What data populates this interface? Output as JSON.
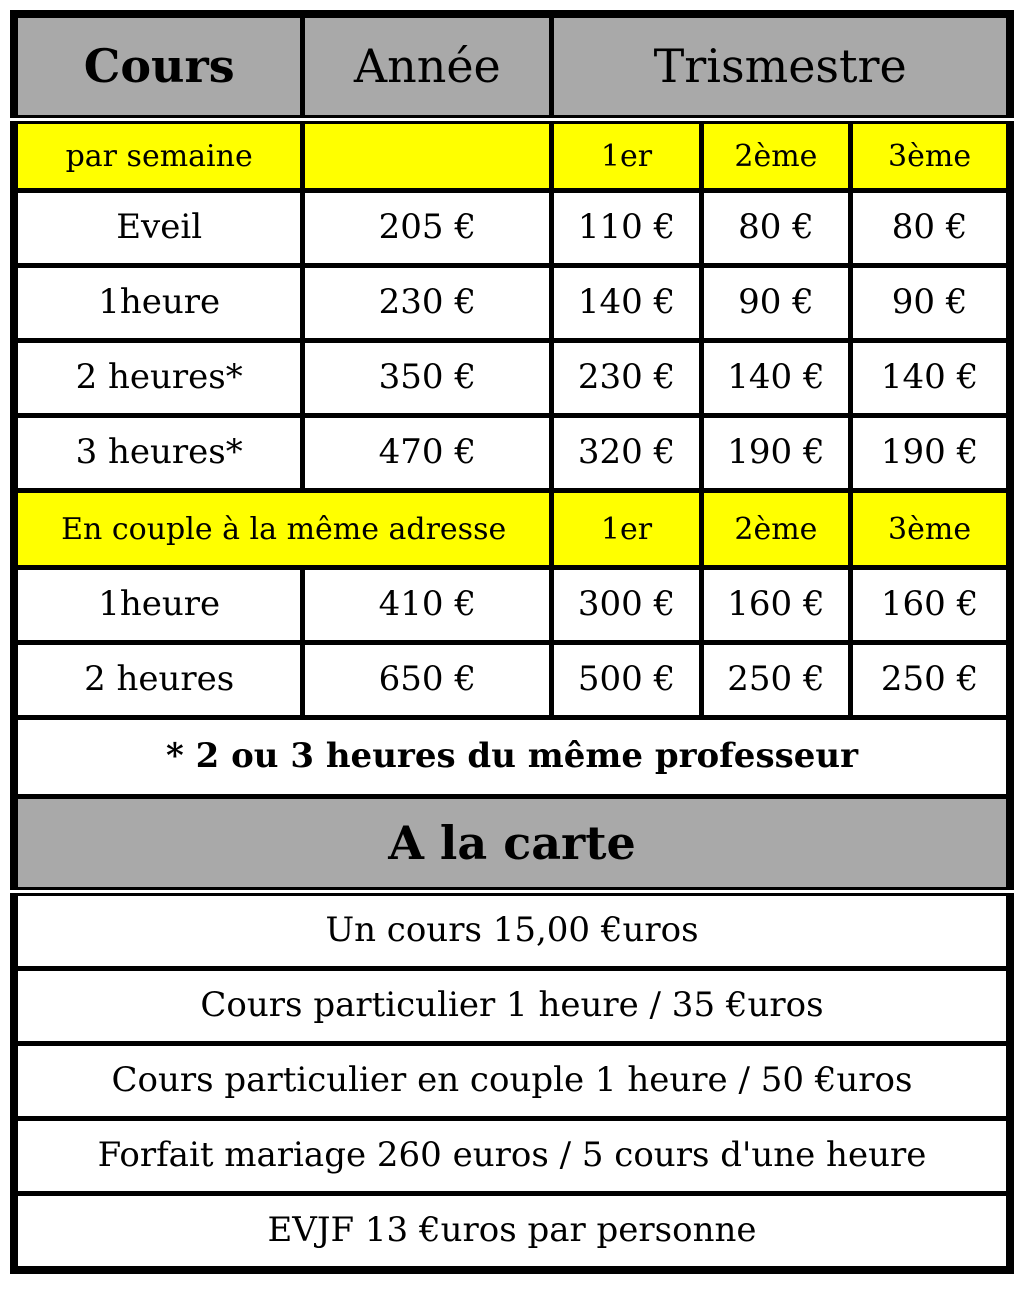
{
  "table": {
    "header": {
      "cours": "Cours",
      "annee": "Année",
      "trimestre": "Trismestre"
    },
    "week_section": {
      "label": "par semaine",
      "terms": [
        "1er",
        "2ème",
        "3ème"
      ],
      "rows": [
        {
          "course": "Eveil",
          "year": "205 €",
          "t1": "110 €",
          "t2": "80 €",
          "t3": "80 €"
        },
        {
          "course": "1heure",
          "year": "230 €",
          "t1": "140 €",
          "t2": "90 €",
          "t3": "90 €"
        },
        {
          "course": "2 heures*",
          "year": "350 €",
          "t1": "230 €",
          "t2": "140 €",
          "t3": "140 €"
        },
        {
          "course": "3 heures*",
          "year": "470 €",
          "t1": "320 €",
          "t2": "190 €",
          "t3": "190 €"
        }
      ]
    },
    "couple_section": {
      "label": "En couple à la même adresse",
      "terms": [
        "1er",
        "2ème",
        "3ème"
      ],
      "rows": [
        {
          "course": "1heure",
          "year": "410 €",
          "t1": "300 €",
          "t2": "160 €",
          "t3": "160 €"
        },
        {
          "course": "2 heures",
          "year": "650 €",
          "t1": "500 €",
          "t2": "250 €",
          "t3": "250 €"
        }
      ]
    },
    "footnote": "* 2 ou 3 heures du même professeur",
    "alacarte": {
      "title": "A la carte",
      "items": [
        "Un cours 15,00 €uros",
        "Cours particulier 1 heure / 35 €uros",
        "Cours particulier en couple 1 heure / 50 €uros",
        "Forfait mariage 260 euros / 5 cours d'une heure",
        "EVJF 13 €uros par personne"
      ]
    },
    "colors": {
      "header_bg": "#a9a9a9",
      "highlight_bg": "#ffff00",
      "border": "#000000",
      "text": "#000000",
      "background": "#ffffff"
    }
  }
}
